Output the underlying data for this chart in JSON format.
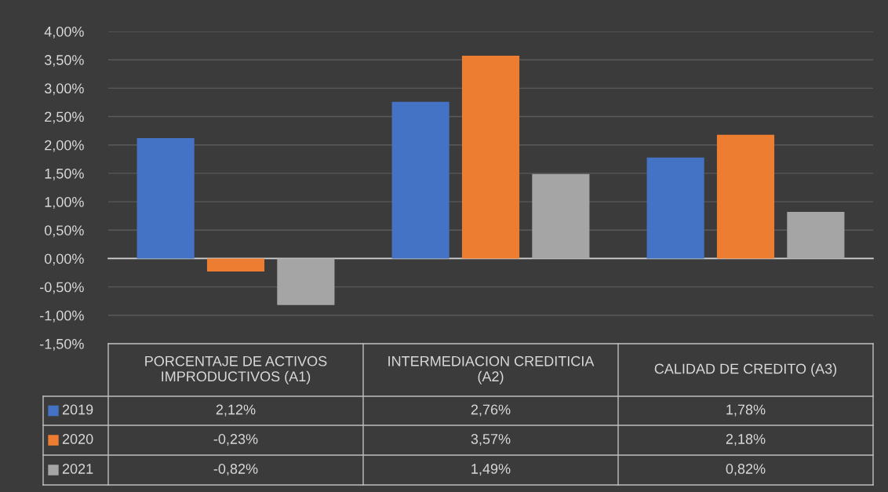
{
  "chart_data": {
    "type": "bar",
    "categories": [
      "PORCENTAJE DE ACTIVOS IMPRODUCTIVOS (A1)",
      "INTERMEDIACION CREDITICIA (A2)",
      "CALIDAD DE CREDITO (A3)"
    ],
    "series": [
      {
        "name": "2019",
        "color": "#4472c4",
        "values": [
          2.12,
          2.76,
          1.78
        ],
        "value_labels": [
          "2,12%",
          "2,76%",
          "1,78%"
        ]
      },
      {
        "name": "2020",
        "color": "#ed7d31",
        "values": [
          -0.23,
          3.57,
          2.18
        ],
        "value_labels": [
          "-0,23%",
          "3,57%",
          "2,18%"
        ]
      },
      {
        "name": "2021",
        "color": "#a5a5a5",
        "values": [
          -0.82,
          1.49,
          0.82
        ],
        "value_labels": [
          "-0,82%",
          "1,49%",
          "0,82%"
        ]
      }
    ],
    "ylim": [
      -1.5,
      4.0
    ],
    "yticks": [
      {
        "value": -1.5,
        "label": "-1,50%"
      },
      {
        "value": -1.0,
        "label": "-1,00%"
      },
      {
        "value": -0.5,
        "label": "-0,50%"
      },
      {
        "value": 0,
        "label": "0,00%"
      },
      {
        "value": 0.5,
        "label": "0,50%"
      },
      {
        "value": 1.0,
        "label": "1,00%"
      },
      {
        "value": 1.5,
        "label": "1,50%"
      },
      {
        "value": 2.0,
        "label": "2,00%"
      },
      {
        "value": 2.5,
        "label": "2,50%"
      },
      {
        "value": 3.0,
        "label": "3,00%"
      },
      {
        "value": 3.5,
        "label": "3,50%"
      },
      {
        "value": 4.0,
        "label": "4,00%"
      }
    ],
    "grid": "y",
    "legend": "bottom"
  }
}
